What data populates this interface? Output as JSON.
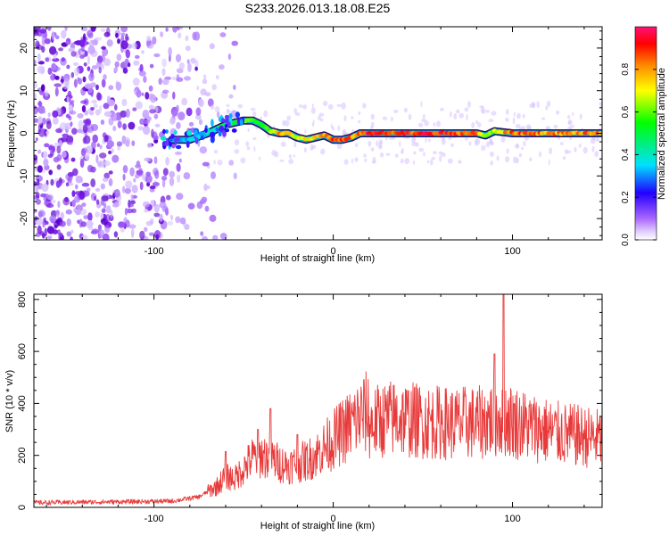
{
  "title": "S233.2026.013.18.08.E25",
  "spectrogram": {
    "xlabel": "Height of straight line (km)",
    "ylabel": "Frequency (Hz)",
    "xlim": [
      -167,
      150
    ],
    "ylim": [
      -25,
      25
    ],
    "xticks": [
      -100,
      0,
      100
    ],
    "yticks": [
      -20,
      -10,
      0,
      10,
      20
    ],
    "xtick_labels": [
      "-100",
      "0",
      "100"
    ],
    "ytick_labels": [
      "-20",
      "-10",
      "0",
      "10",
      "20"
    ],
    "colorbar": {
      "label": "Normalized spectral amplitude",
      "range": [
        0,
        1
      ],
      "ticks": [
        0.0,
        0.2,
        0.4,
        0.6,
        0.8
      ],
      "tick_labels": [
        "0.0",
        "0.2",
        "0.4",
        "0.6",
        "0.8"
      ],
      "colormap": [
        "#ffffff",
        "#cc99ff",
        "#7700dd",
        "#2200ff",
        "#00ffff",
        "#00ff00",
        "#ffff00",
        "#ff8800",
        "#ff0000",
        "#ff0088"
      ]
    }
  },
  "chart_data": [
    {
      "type": "heatmap",
      "title": "S233.2026.013.18.08.E25",
      "xlabel": "Height of straight line (km)",
      "ylabel": "Frequency (Hz)",
      "xlim": [
        -167,
        150
      ],
      "ylim": [
        -25,
        25
      ],
      "colorbar_label": "Normalized spectral amplitude",
      "noise_region_x": [
        -167,
        -62
      ],
      "ridge": {
        "x": [
          -90,
          -80,
          -70,
          -60,
          -55,
          -50,
          -45,
          -40,
          -35,
          -30,
          -25,
          -20,
          -15,
          -10,
          -5,
          0,
          5,
          10,
          15,
          20,
          30,
          40,
          50,
          60,
          70,
          80,
          85,
          90,
          100,
          110,
          120,
          130,
          140,
          150
        ],
        "frequency": [
          -1.5,
          -1.5,
          0,
          2,
          2.5,
          3,
          3,
          2,
          0.5,
          0,
          0,
          -1,
          -1.5,
          -1,
          -0.5,
          -1.5,
          -1.5,
          -1,
          0,
          0,
          0,
          0,
          0,
          0,
          0,
          0,
          -0.5,
          0.5,
          0,
          0,
          0,
          0,
          0,
          0
        ],
        "amplitude": [
          0.3,
          0.35,
          0.4,
          0.5,
          0.6,
          0.65,
          0.6,
          0.55,
          0.7,
          0.85,
          0.85,
          0.7,
          0.75,
          0.8,
          0.85,
          0.9,
          0.9,
          0.85,
          0.9,
          0.95,
          0.95,
          0.95,
          0.95,
          0.95,
          0.9,
          0.9,
          0.6,
          0.7,
          0.9,
          0.9,
          0.85,
          0.85,
          0.85,
          0.85
        ]
      }
    },
    {
      "type": "line",
      "xlabel": "Height of straight line (km)",
      "ylabel": "SNR (10 * v/v)",
      "xlim": [
        -167,
        150
      ],
      "ylim": [
        0,
        820
      ],
      "xticks": [
        -100,
        0,
        100
      ],
      "yticks": [
        0,
        200,
        400,
        600,
        800
      ],
      "xtick_labels": [
        "-100",
        "0",
        "100"
      ],
      "ytick_labels": [
        "0",
        "200",
        "400",
        "600",
        "800"
      ],
      "color": "#e83a3a",
      "x": [
        -167,
        -140,
        -110,
        -90,
        -75,
        -65,
        -60,
        -55,
        -50,
        -45,
        -40,
        -35,
        -30,
        -25,
        -20,
        -15,
        -10,
        -5,
        0,
        5,
        10,
        15,
        20,
        25,
        30,
        35,
        40,
        45,
        50,
        55,
        60,
        65,
        70,
        75,
        80,
        85,
        90,
        95,
        100,
        105,
        110,
        115,
        120,
        125,
        130,
        135,
        140,
        145,
        150
      ],
      "y": [
        18,
        20,
        22,
        24,
        40,
        80,
        120,
        110,
        150,
        190,
        200,
        190,
        170,
        160,
        170,
        180,
        200,
        230,
        260,
        290,
        320,
        350,
        370,
        390,
        400,
        405,
        400,
        395,
        390,
        385,
        385,
        380,
        380,
        385,
        380,
        390,
        400,
        405,
        390,
        375,
        365,
        355,
        345,
        335,
        330,
        325,
        320,
        315,
        310
      ],
      "spikes": [
        {
          "x": -60,
          "y": 215
        },
        {
          "x": -42,
          "y": 300
        },
        {
          "x": -35,
          "y": 380
        },
        {
          "x": -20,
          "y": 280
        },
        {
          "x": 90,
          "y": 590
        },
        {
          "x": 95,
          "y": 820
        }
      ]
    }
  ]
}
